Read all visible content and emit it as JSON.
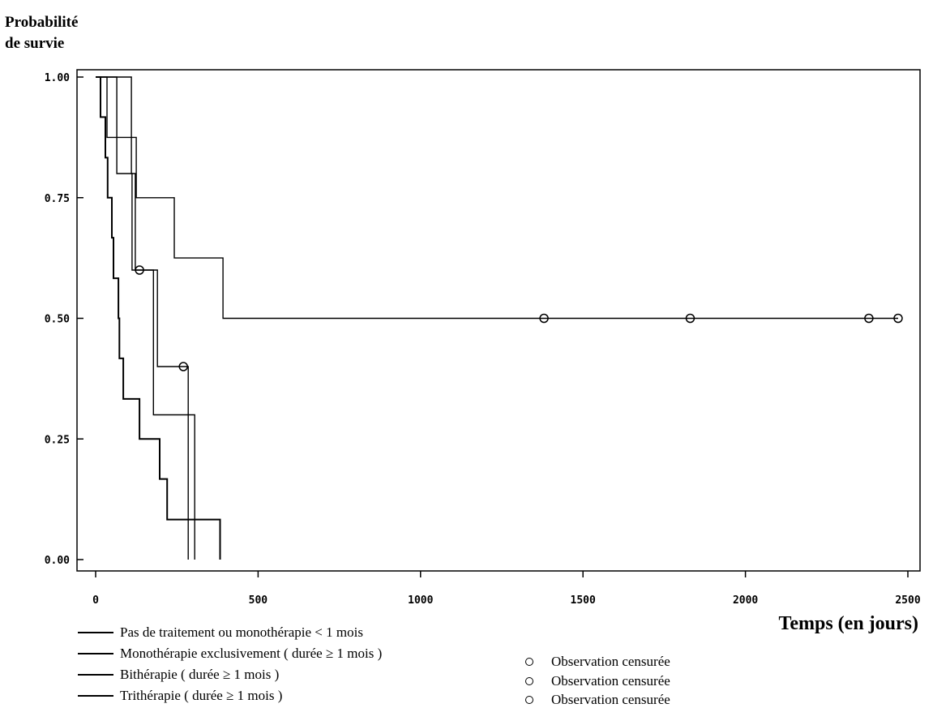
{
  "chart_data": {
    "type": "line",
    "step": true,
    "ylabel_line1": "Probabilité",
    "ylabel_line2": "de survie",
    "xlabel": "Temps (en jours)",
    "xlim": [
      0,
      2500
    ],
    "ylim": [
      0,
      1
    ],
    "x_ticks": [
      "0",
      "500",
      "1000",
      "1500",
      "2000",
      "2500"
    ],
    "x_tick_values": [
      0,
      500,
      1000,
      1500,
      2000,
      2500
    ],
    "y_ticks": [
      "0.00",
      "0.25",
      "0.50",
      "0.75",
      "1.00"
    ],
    "y_tick_values": [
      0,
      0.25,
      0.5,
      0.75,
      1.0
    ],
    "grid": false,
    "legend_position": "bottom",
    "series": [
      {
        "name": "Pas de traitement ou monothérapie < 1 mois",
        "points": [
          [
            0,
            1.0
          ],
          [
            15,
            1.0
          ],
          [
            15,
            0.917
          ],
          [
            30,
            0.917
          ],
          [
            30,
            0.833
          ],
          [
            37,
            0.833
          ],
          [
            37,
            0.75
          ],
          [
            50,
            0.75
          ],
          [
            50,
            0.667
          ],
          [
            55,
            0.667
          ],
          [
            55,
            0.583
          ],
          [
            70,
            0.583
          ],
          [
            70,
            0.5
          ],
          [
            73,
            0.5
          ],
          [
            73,
            0.417
          ],
          [
            85,
            0.417
          ],
          [
            85,
            0.333
          ],
          [
            135,
            0.333
          ],
          [
            135,
            0.25
          ],
          [
            197,
            0.25
          ],
          [
            197,
            0.167
          ],
          [
            220,
            0.167
          ],
          [
            220,
            0.083
          ],
          [
            383,
            0.083
          ],
          [
            383,
            0.0
          ]
        ],
        "censored": []
      },
      {
        "name": "Monothérapie exclusivement ( durée ≥ 1 mois )",
        "points": [
          [
            0,
            1.0
          ],
          [
            110,
            1.0
          ],
          [
            110,
            0.8
          ],
          [
            122,
            0.8
          ],
          [
            122,
            0.6
          ],
          [
            190,
            0.6
          ],
          [
            190,
            0.4
          ],
          [
            285,
            0.4
          ],
          [
            285,
            0.0
          ]
        ],
        "censored": [
          [
            135,
            0.6
          ],
          [
            270,
            0.4
          ]
        ]
      },
      {
        "name": "Bithérapie ( durée ≥ 1 mois )",
        "points": [
          [
            0,
            1.0
          ],
          [
            35,
            1.0
          ],
          [
            35,
            0.875
          ],
          [
            125,
            0.875
          ],
          [
            125,
            0.75
          ],
          [
            242,
            0.75
          ],
          [
            242,
            0.625
          ],
          [
            392,
            0.625
          ],
          [
            392,
            0.5
          ],
          [
            2470,
            0.5
          ]
        ],
        "censored": [
          [
            1380,
            0.5
          ],
          [
            1830,
            0.5
          ],
          [
            2380,
            0.5
          ],
          [
            2470,
            0.5
          ]
        ]
      },
      {
        "name": "Trithérapie ( durée ≥ 1 mois )",
        "points": [
          [
            0,
            1.0
          ],
          [
            65,
            1.0
          ],
          [
            65,
            0.8
          ],
          [
            112,
            0.8
          ],
          [
            112,
            0.6
          ],
          [
            178,
            0.6
          ],
          [
            178,
            0.3
          ],
          [
            305,
            0.3
          ],
          [
            305,
            0.0
          ]
        ],
        "censored": []
      }
    ],
    "censor_label": "Observation censurée",
    "censor_legend_count": 3
  }
}
